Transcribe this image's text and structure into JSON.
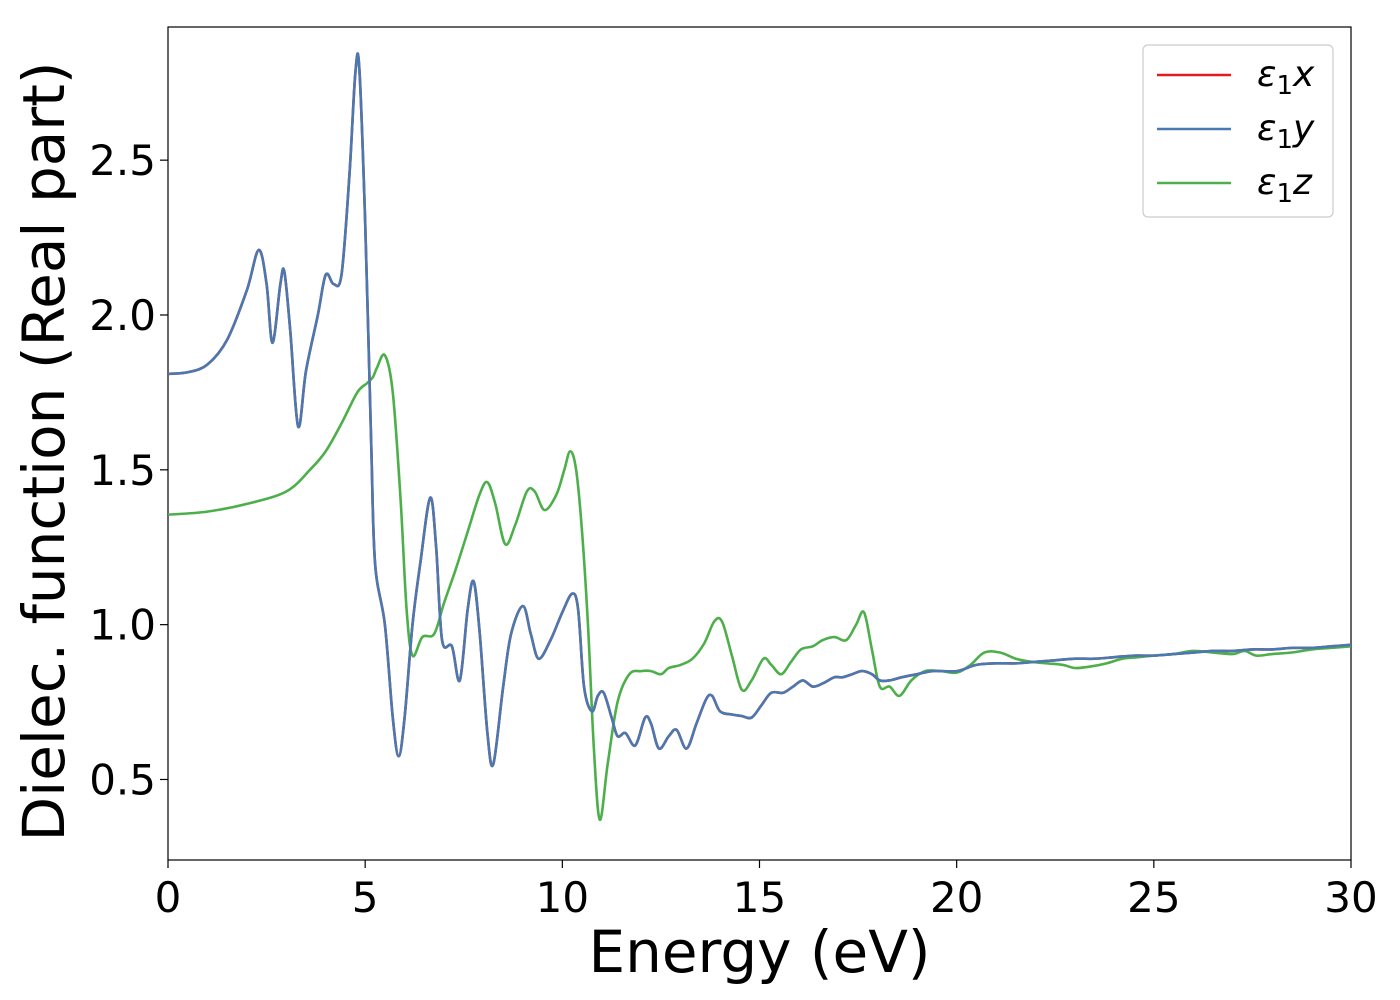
{
  "chart_data": {
    "type": "line",
    "xlabel": "Energy (eV)",
    "ylabel": "Dielec. function (Real part)",
    "xlim": [
      0,
      30
    ],
    "ylim": [
      0.24,
      2.93
    ],
    "xticks": [
      0,
      5,
      10,
      15,
      20,
      25,
      30
    ],
    "xtick_labels": [
      "0",
      "5",
      "10",
      "15",
      "20",
      "25",
      "30"
    ],
    "yticks": [
      0.5,
      1.0,
      1.5,
      2.0,
      2.5
    ],
    "ytick_labels": [
      "0.5",
      "1.0",
      "1.5",
      "2.0",
      "2.5"
    ],
    "grid": false,
    "legend_position": "top-right",
    "series": [
      {
        "name": "ε1x",
        "legend_sym": "ε",
        "legend_sub": "1",
        "legend_var": "x",
        "color": "#e41a1c",
        "points": [
          [
            0,
            1.81
          ],
          [
            0.5,
            1.815
          ],
          [
            1.0,
            1.84
          ],
          [
            1.5,
            1.92
          ],
          [
            2.0,
            2.08
          ],
          [
            2.3,
            2.21
          ],
          [
            2.5,
            2.1
          ],
          [
            2.65,
            1.91
          ],
          [
            2.85,
            2.1
          ],
          [
            2.95,
            2.14
          ],
          [
            3.1,
            1.95
          ],
          [
            3.3,
            1.64
          ],
          [
            3.5,
            1.82
          ],
          [
            3.8,
            2.0
          ],
          [
            4.0,
            2.13
          ],
          [
            4.2,
            2.1
          ],
          [
            4.4,
            2.13
          ],
          [
            4.6,
            2.45
          ],
          [
            4.75,
            2.78
          ],
          [
            4.85,
            2.8
          ],
          [
            5.0,
            2.3
          ],
          [
            5.15,
            1.6
          ],
          [
            5.25,
            1.2
          ],
          [
            5.5,
            1.0
          ],
          [
            5.7,
            0.7
          ],
          [
            5.85,
            0.575
          ],
          [
            6.0,
            0.7
          ],
          [
            6.2,
            1.0
          ],
          [
            6.4,
            1.2
          ],
          [
            6.65,
            1.41
          ],
          [
            6.8,
            1.25
          ],
          [
            6.95,
            0.95
          ],
          [
            7.2,
            0.93
          ],
          [
            7.4,
            0.82
          ],
          [
            7.6,
            1.05
          ],
          [
            7.75,
            1.14
          ],
          [
            7.9,
            0.98
          ],
          [
            8.1,
            0.65
          ],
          [
            8.25,
            0.55
          ],
          [
            8.5,
            0.8
          ],
          [
            8.7,
            0.97
          ],
          [
            9.0,
            1.06
          ],
          [
            9.2,
            0.97
          ],
          [
            9.4,
            0.89
          ],
          [
            9.7,
            0.95
          ],
          [
            10.0,
            1.04
          ],
          [
            10.25,
            1.1
          ],
          [
            10.4,
            1.05
          ],
          [
            10.55,
            0.8
          ],
          [
            10.75,
            0.72
          ],
          [
            10.9,
            0.77
          ],
          [
            11.05,
            0.78
          ],
          [
            11.25,
            0.7
          ],
          [
            11.4,
            0.64
          ],
          [
            11.6,
            0.65
          ],
          [
            11.85,
            0.61
          ],
          [
            12.1,
            0.7
          ],
          [
            12.25,
            0.68
          ],
          [
            12.45,
            0.6
          ],
          [
            12.7,
            0.64
          ],
          [
            12.9,
            0.66
          ],
          [
            13.15,
            0.6
          ],
          [
            13.4,
            0.68
          ],
          [
            13.65,
            0.76
          ],
          [
            13.8,
            0.77
          ],
          [
            14.0,
            0.72
          ],
          [
            14.3,
            0.71
          ],
          [
            14.55,
            0.705
          ],
          [
            14.8,
            0.7
          ],
          [
            15.05,
            0.74
          ],
          [
            15.3,
            0.78
          ],
          [
            15.6,
            0.78
          ],
          [
            15.85,
            0.8
          ],
          [
            16.1,
            0.82
          ],
          [
            16.35,
            0.8
          ],
          [
            16.6,
            0.81
          ],
          [
            16.9,
            0.83
          ],
          [
            17.1,
            0.83
          ],
          [
            17.35,
            0.84
          ],
          [
            17.6,
            0.85
          ],
          [
            17.85,
            0.84
          ],
          [
            18.05,
            0.82
          ],
          [
            18.3,
            0.82
          ],
          [
            18.6,
            0.83
          ],
          [
            19.0,
            0.84
          ],
          [
            19.4,
            0.85
          ],
          [
            20.0,
            0.85
          ],
          [
            20.5,
            0.87
          ],
          [
            21.0,
            0.875
          ],
          [
            21.5,
            0.875
          ],
          [
            22.0,
            0.88
          ],
          [
            22.5,
            0.885
          ],
          [
            23.0,
            0.89
          ],
          [
            23.5,
            0.89
          ],
          [
            24.0,
            0.895
          ],
          [
            24.5,
            0.9
          ],
          [
            25.0,
            0.9
          ],
          [
            25.5,
            0.905
          ],
          [
            26.0,
            0.91
          ],
          [
            26.5,
            0.915
          ],
          [
            27.0,
            0.915
          ],
          [
            27.5,
            0.92
          ],
          [
            28.0,
            0.92
          ],
          [
            28.5,
            0.925
          ],
          [
            29.0,
            0.925
          ],
          [
            29.5,
            0.93
          ],
          [
            30.0,
            0.935
          ]
        ]
      },
      {
        "name": "ε1y",
        "legend_sym": "ε",
        "legend_sub": "1",
        "legend_var": "y",
        "color": "#4a78b0",
        "points": [
          [
            0,
            1.81
          ],
          [
            0.5,
            1.815
          ],
          [
            1.0,
            1.84
          ],
          [
            1.5,
            1.92
          ],
          [
            2.0,
            2.08
          ],
          [
            2.3,
            2.21
          ],
          [
            2.5,
            2.1
          ],
          [
            2.65,
            1.91
          ],
          [
            2.85,
            2.1
          ],
          [
            2.95,
            2.14
          ],
          [
            3.1,
            1.95
          ],
          [
            3.3,
            1.64
          ],
          [
            3.5,
            1.82
          ],
          [
            3.8,
            2.0
          ],
          [
            4.0,
            2.13
          ],
          [
            4.2,
            2.1
          ],
          [
            4.4,
            2.13
          ],
          [
            4.6,
            2.45
          ],
          [
            4.75,
            2.78
          ],
          [
            4.85,
            2.8
          ],
          [
            5.0,
            2.3
          ],
          [
            5.15,
            1.6
          ],
          [
            5.25,
            1.2
          ],
          [
            5.5,
            1.0
          ],
          [
            5.7,
            0.7
          ],
          [
            5.85,
            0.575
          ],
          [
            6.0,
            0.7
          ],
          [
            6.2,
            1.0
          ],
          [
            6.4,
            1.2
          ],
          [
            6.65,
            1.41
          ],
          [
            6.8,
            1.25
          ],
          [
            6.95,
            0.95
          ],
          [
            7.2,
            0.93
          ],
          [
            7.4,
            0.82
          ],
          [
            7.6,
            1.05
          ],
          [
            7.75,
            1.14
          ],
          [
            7.9,
            0.98
          ],
          [
            8.1,
            0.65
          ],
          [
            8.25,
            0.55
          ],
          [
            8.5,
            0.8
          ],
          [
            8.7,
            0.97
          ],
          [
            9.0,
            1.06
          ],
          [
            9.2,
            0.97
          ],
          [
            9.4,
            0.89
          ],
          [
            9.7,
            0.95
          ],
          [
            10.0,
            1.04
          ],
          [
            10.25,
            1.1
          ],
          [
            10.4,
            1.05
          ],
          [
            10.55,
            0.8
          ],
          [
            10.75,
            0.72
          ],
          [
            10.9,
            0.77
          ],
          [
            11.05,
            0.78
          ],
          [
            11.25,
            0.7
          ],
          [
            11.4,
            0.64
          ],
          [
            11.6,
            0.65
          ],
          [
            11.85,
            0.61
          ],
          [
            12.1,
            0.7
          ],
          [
            12.25,
            0.68
          ],
          [
            12.45,
            0.6
          ],
          [
            12.7,
            0.64
          ],
          [
            12.9,
            0.66
          ],
          [
            13.15,
            0.6
          ],
          [
            13.4,
            0.68
          ],
          [
            13.65,
            0.76
          ],
          [
            13.8,
            0.77
          ],
          [
            14.0,
            0.72
          ],
          [
            14.3,
            0.71
          ],
          [
            14.55,
            0.705
          ],
          [
            14.8,
            0.7
          ],
          [
            15.05,
            0.74
          ],
          [
            15.3,
            0.78
          ],
          [
            15.6,
            0.78
          ],
          [
            15.85,
            0.8
          ],
          [
            16.1,
            0.82
          ],
          [
            16.35,
            0.8
          ],
          [
            16.6,
            0.81
          ],
          [
            16.9,
            0.83
          ],
          [
            17.1,
            0.83
          ],
          [
            17.35,
            0.84
          ],
          [
            17.6,
            0.85
          ],
          [
            17.85,
            0.84
          ],
          [
            18.05,
            0.82
          ],
          [
            18.3,
            0.82
          ],
          [
            18.6,
            0.83
          ],
          [
            19.0,
            0.84
          ],
          [
            19.4,
            0.85
          ],
          [
            20.0,
            0.85
          ],
          [
            20.5,
            0.87
          ],
          [
            21.0,
            0.875
          ],
          [
            21.5,
            0.875
          ],
          [
            22.0,
            0.88
          ],
          [
            22.5,
            0.885
          ],
          [
            23.0,
            0.89
          ],
          [
            23.5,
            0.89
          ],
          [
            24.0,
            0.895
          ],
          [
            24.5,
            0.9
          ],
          [
            25.0,
            0.9
          ],
          [
            25.5,
            0.905
          ],
          [
            26.0,
            0.91
          ],
          [
            26.5,
            0.915
          ],
          [
            27.0,
            0.915
          ],
          [
            27.5,
            0.92
          ],
          [
            28.0,
            0.92
          ],
          [
            28.5,
            0.925
          ],
          [
            29.0,
            0.925
          ],
          [
            29.5,
            0.93
          ],
          [
            30.0,
            0.935
          ]
        ]
      },
      {
        "name": "ε1z",
        "legend_sym": "ε",
        "legend_sub": "1",
        "legend_var": "z",
        "color": "#4daf4a",
        "points": [
          [
            0,
            1.355
          ],
          [
            1.0,
            1.365
          ],
          [
            2.0,
            1.39
          ],
          [
            3.0,
            1.43
          ],
          [
            3.6,
            1.5
          ],
          [
            4.0,
            1.56
          ],
          [
            4.4,
            1.65
          ],
          [
            4.8,
            1.75
          ],
          [
            5.05,
            1.78
          ],
          [
            5.2,
            1.8
          ],
          [
            5.3,
            1.83
          ],
          [
            5.5,
            1.87
          ],
          [
            5.7,
            1.75
          ],
          [
            5.9,
            1.4
          ],
          [
            6.05,
            1.05
          ],
          [
            6.2,
            0.9
          ],
          [
            6.45,
            0.96
          ],
          [
            6.75,
            0.97
          ],
          [
            7.0,
            1.07
          ],
          [
            7.3,
            1.18
          ],
          [
            7.6,
            1.3
          ],
          [
            7.9,
            1.42
          ],
          [
            8.1,
            1.46
          ],
          [
            8.3,
            1.39
          ],
          [
            8.55,
            1.26
          ],
          [
            8.8,
            1.32
          ],
          [
            9.1,
            1.43
          ],
          [
            9.3,
            1.43
          ],
          [
            9.55,
            1.37
          ],
          [
            9.85,
            1.42
          ],
          [
            10.05,
            1.5
          ],
          [
            10.2,
            1.56
          ],
          [
            10.35,
            1.5
          ],
          [
            10.5,
            1.3
          ],
          [
            10.65,
            1.0
          ],
          [
            10.8,
            0.6
          ],
          [
            10.95,
            0.37
          ],
          [
            11.15,
            0.55
          ],
          [
            11.4,
            0.75
          ],
          [
            11.7,
            0.84
          ],
          [
            12.0,
            0.85
          ],
          [
            12.25,
            0.85
          ],
          [
            12.5,
            0.84
          ],
          [
            12.7,
            0.86
          ],
          [
            13.0,
            0.87
          ],
          [
            13.3,
            0.89
          ],
          [
            13.6,
            0.94
          ],
          [
            13.85,
            1.01
          ],
          [
            14.05,
            1.01
          ],
          [
            14.3,
            0.9
          ],
          [
            14.55,
            0.79
          ],
          [
            14.8,
            0.82
          ],
          [
            15.1,
            0.89
          ],
          [
            15.3,
            0.87
          ],
          [
            15.55,
            0.84
          ],
          [
            15.8,
            0.88
          ],
          [
            16.05,
            0.92
          ],
          [
            16.35,
            0.93
          ],
          [
            16.6,
            0.95
          ],
          [
            16.9,
            0.96
          ],
          [
            17.2,
            0.95
          ],
          [
            17.45,
            1.0
          ],
          [
            17.65,
            1.04
          ],
          [
            17.85,
            0.92
          ],
          [
            18.05,
            0.8
          ],
          [
            18.3,
            0.8
          ],
          [
            18.55,
            0.77
          ],
          [
            18.85,
            0.82
          ],
          [
            19.2,
            0.85
          ],
          [
            19.6,
            0.85
          ],
          [
            20.0,
            0.845
          ],
          [
            20.35,
            0.87
          ],
          [
            20.7,
            0.91
          ],
          [
            21.1,
            0.91
          ],
          [
            21.5,
            0.89
          ],
          [
            21.9,
            0.88
          ],
          [
            22.3,
            0.875
          ],
          [
            22.7,
            0.87
          ],
          [
            23.0,
            0.86
          ],
          [
            23.4,
            0.865
          ],
          [
            23.8,
            0.875
          ],
          [
            24.2,
            0.89
          ],
          [
            24.6,
            0.895
          ],
          [
            25.0,
            0.9
          ],
          [
            25.5,
            0.905
          ],
          [
            26.0,
            0.915
          ],
          [
            26.5,
            0.91
          ],
          [
            27.0,
            0.905
          ],
          [
            27.3,
            0.915
          ],
          [
            27.6,
            0.9
          ],
          [
            28.0,
            0.905
          ],
          [
            28.5,
            0.91
          ],
          [
            29.0,
            0.92
          ],
          [
            29.5,
            0.925
          ],
          [
            30.0,
            0.93
          ]
        ]
      }
    ]
  }
}
